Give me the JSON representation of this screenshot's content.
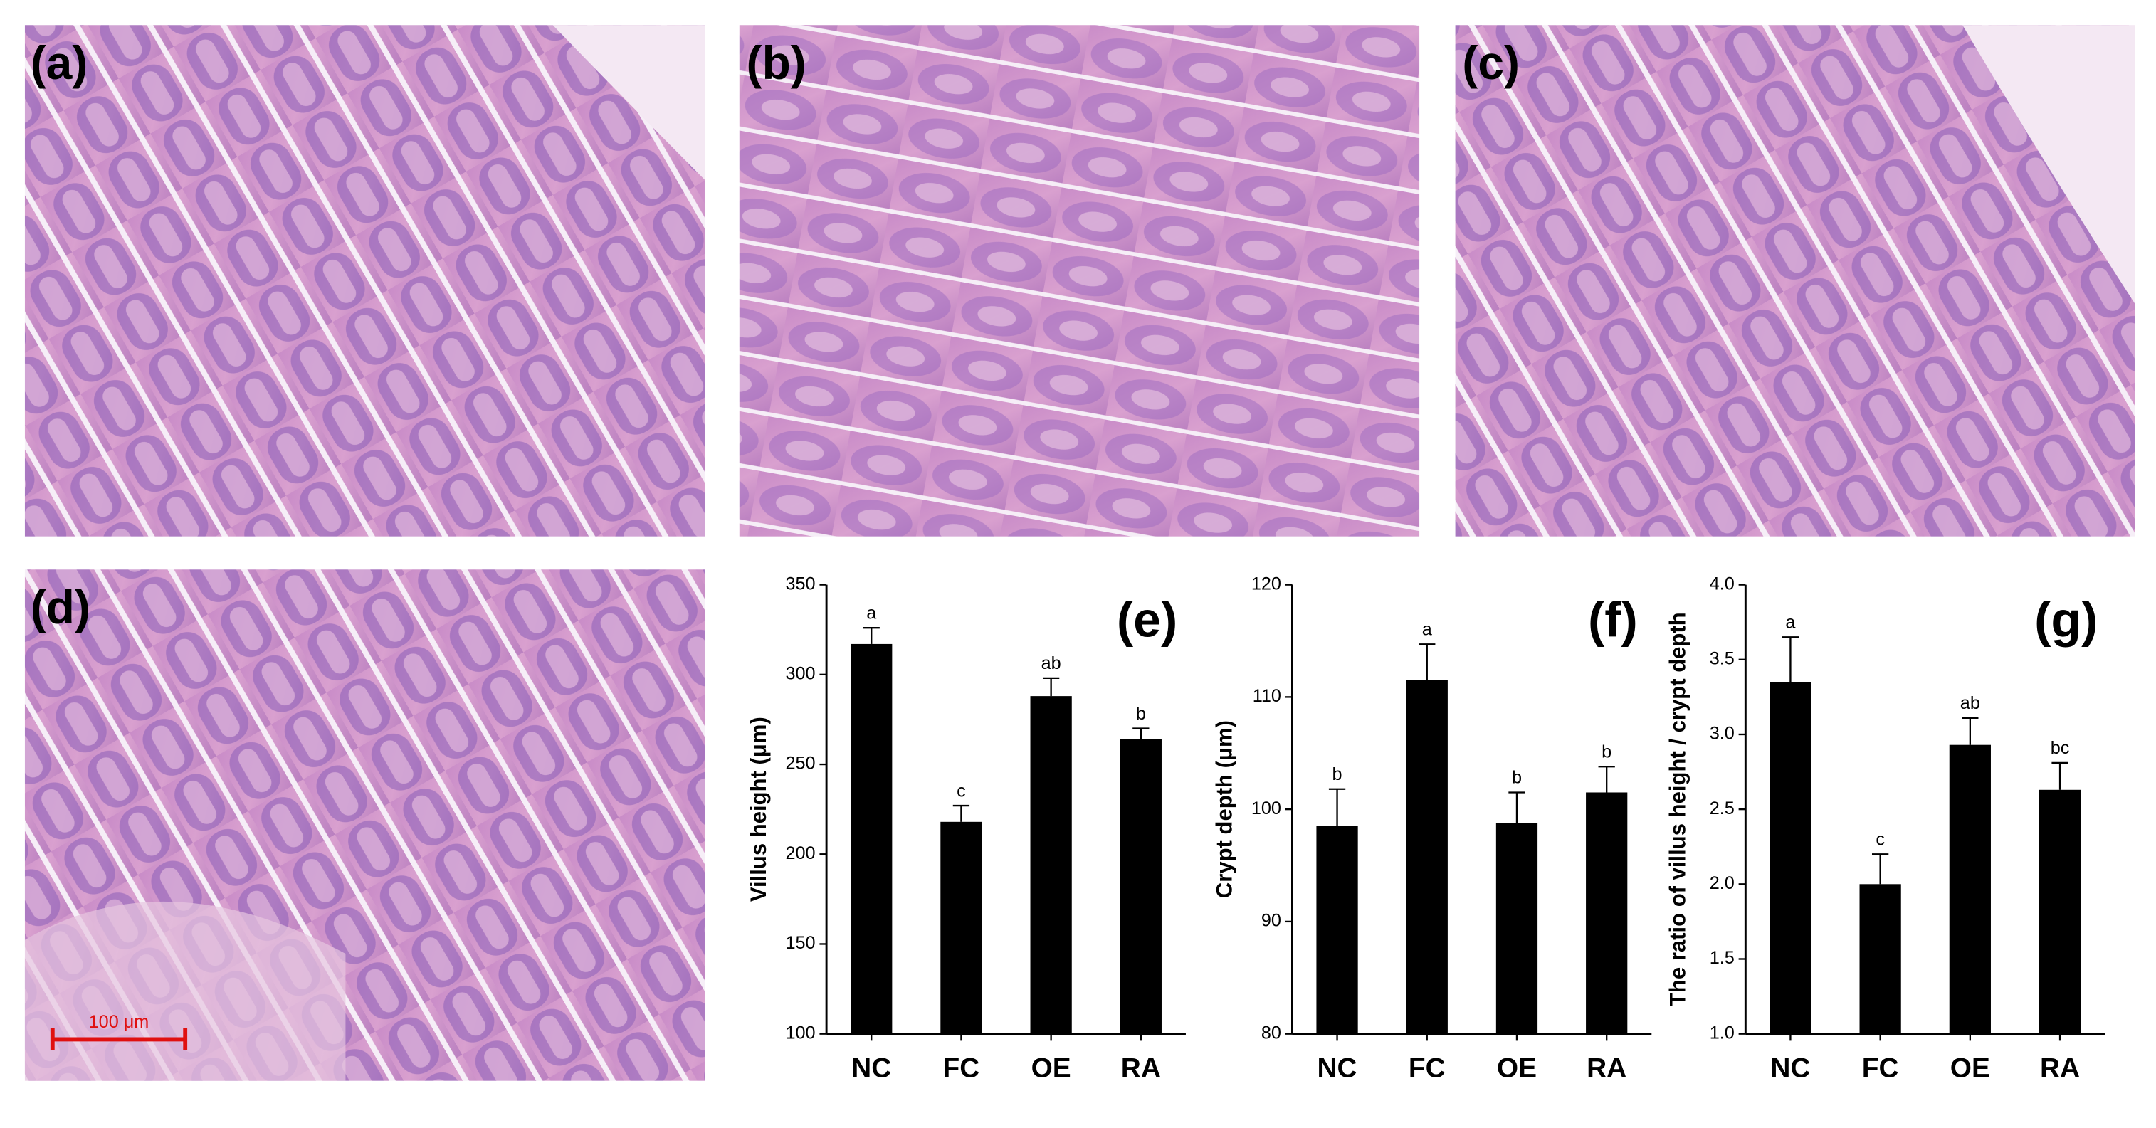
{
  "images": [
    {
      "label": "(a)"
    },
    {
      "label": "(b)"
    },
    {
      "label": "(c)"
    },
    {
      "label": "(d)"
    }
  ],
  "scale_bar": "100 μm",
  "chart_data": [
    {
      "type": "bar",
      "panel": "(e)",
      "y_label": "Villus height (μm)",
      "categories": [
        "NC",
        "FC",
        "OE",
        "RA"
      ],
      "color": "#000000",
      "values": [
        317,
        218,
        288,
        264
      ],
      "errors": [
        9,
        9,
        10,
        6
      ],
      "annotations": [
        "a",
        "c",
        "ab",
        "b"
      ],
      "ylim": [
        100,
        350
      ],
      "yticks": [
        100,
        150,
        200,
        250,
        300,
        350
      ]
    },
    {
      "type": "bar",
      "panel": "(f)",
      "y_label": "Crypt depth (μm)",
      "categories": [
        "NC",
        "FC",
        "OE",
        "RA"
      ],
      "color": "#000000",
      "values": [
        98.5,
        111.5,
        98.8,
        101.5
      ],
      "errors": [
        3.3,
        3.2,
        2.7,
        2.3
      ],
      "annotations": [
        "b",
        "a",
        "b",
        "b"
      ],
      "ylim": [
        80,
        120
      ],
      "yticks": [
        80,
        90,
        100,
        110,
        120
      ]
    },
    {
      "type": "bar",
      "panel": "(g)",
      "y_label": "The ratio of villus height / crypt depth",
      "categories": [
        "NC",
        "FC",
        "OE",
        "RA"
      ],
      "color": "#000000",
      "values": [
        3.35,
        2.0,
        2.93,
        2.63
      ],
      "errors": [
        0.3,
        0.2,
        0.18,
        0.18
      ],
      "annotations": [
        "a",
        "c",
        "ab",
        "bc"
      ],
      "ylim": [
        1.0,
        4.0
      ],
      "yticks": [
        {
          "value": 1.0,
          "label": "1.0"
        },
        {
          "value": 1.5,
          "label": "1.5"
        },
        {
          "value": 2.0,
          "label": "2.0"
        },
        {
          "value": 2.5,
          "label": "2.5"
        },
        {
          "value": 3.0,
          "label": "3.0"
        },
        {
          "value": 3.5,
          "label": "3.5"
        },
        {
          "value": 4.0,
          "label": "4.0"
        }
      ]
    }
  ]
}
